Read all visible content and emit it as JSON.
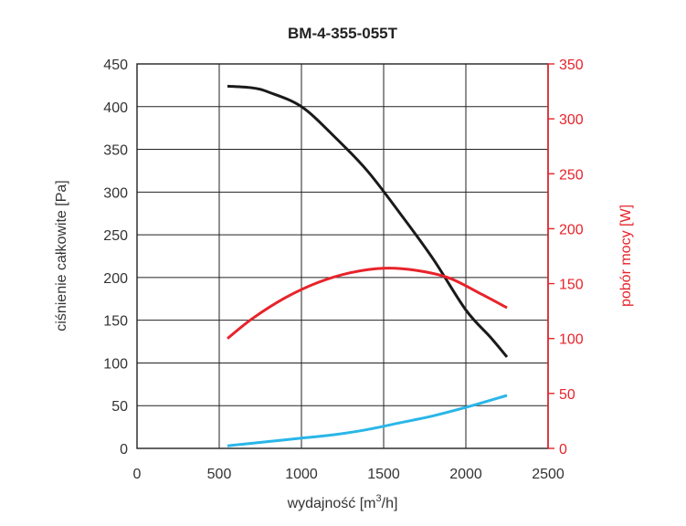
{
  "chart_data": {
    "type": "line",
    "title": "BM-4-355-055T",
    "xlabel": "wydajność [m³/h]",
    "xlabel_parts": {
      "main": "wydajność [m",
      "sup": "3",
      "tail": "/h]"
    },
    "ylabel": "ciśnienie całkowite [Pa]",
    "y2label": "pobór mocy [W]",
    "xlim": [
      0,
      2500
    ],
    "ylim": [
      0,
      450
    ],
    "y2lim": [
      0,
      350
    ],
    "xticks": [
      "0",
      "500",
      "1000",
      "1500",
      "2000",
      "2500"
    ],
    "yticks": [
      "0",
      "50",
      "100",
      "150",
      "200",
      "250",
      "300",
      "350",
      "400",
      "450"
    ],
    "y2ticks": [
      "0",
      "50",
      "100",
      "150",
      "200",
      "250",
      "300",
      "350"
    ],
    "grid": true,
    "colors": {
      "pressure": "#1a1a1a",
      "power": "#e8232a",
      "efficiency": "#29b6e8",
      "axis_right": "#e8232a"
    },
    "series": [
      {
        "axis": "left",
        "color": "#1a1a1a",
        "x": [
          550,
          700,
          800,
          1000,
          1200,
          1400,
          1600,
          1800,
          2000,
          2150,
          2250
        ],
        "values": [
          424,
          422,
          417,
          400,
          365,
          325,
          275,
          222,
          162,
          130,
          107
        ]
      },
      {
        "axis": "right",
        "color": "#e8232a",
        "x": [
          550,
          700,
          900,
          1100,
          1300,
          1500,
          1700,
          1900,
          2100,
          2250
        ],
        "values": [
          100,
          118,
          137,
          151,
          160,
          164,
          162,
          155,
          140,
          128
        ]
      },
      {
        "axis": "left",
        "color": "#29b6e8",
        "x": [
          550,
          800,
          1000,
          1200,
          1400,
          1600,
          1800,
          2000,
          2250
        ],
        "values": [
          3,
          8,
          12,
          16,
          22,
          30,
          38,
          48,
          62
        ]
      }
    ]
  }
}
